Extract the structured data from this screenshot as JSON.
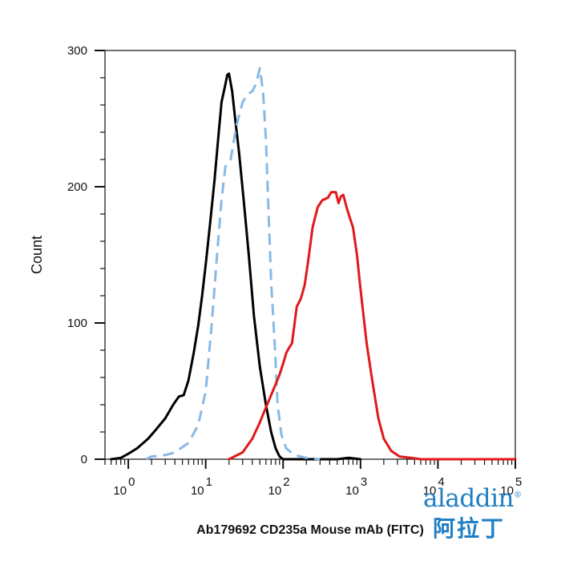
{
  "chart_data": {
    "type": "line",
    "xlabel": "Ab179692 CD235a Mouse mAb (FITC)",
    "ylabel": "Count",
    "x_scale": "log",
    "xlim": [
      0.5,
      100000
    ],
    "ylim": [
      0,
      300
    ],
    "yticks": [
      0,
      100,
      200,
      300
    ],
    "yticks_labels": [
      "0",
      "100",
      "200",
      "300"
    ],
    "xticks": [
      1,
      10,
      100,
      1000,
      10000,
      100000
    ],
    "xticks_base": "10",
    "xticks_exponents": [
      "0",
      "1",
      "2",
      "3",
      "4",
      "5"
    ],
    "grid": false,
    "legend": "none",
    "series": [
      {
        "color": "#000000",
        "style": "solid",
        "points": [
          [
            0.6,
            0
          ],
          [
            0.8,
            1
          ],
          [
            1.0,
            4
          ],
          [
            1.3,
            8
          ],
          [
            1.8,
            15
          ],
          [
            2.3,
            22
          ],
          [
            3.0,
            30
          ],
          [
            3.8,
            40
          ],
          [
            4.5,
            46
          ],
          [
            5.2,
            47
          ],
          [
            6.0,
            58
          ],
          [
            7.0,
            78
          ],
          [
            8.0,
            98
          ],
          [
            9.0,
            120
          ],
          [
            10.0,
            143
          ],
          [
            11.5,
            175
          ],
          [
            13.0,
            205
          ],
          [
            14.5,
            235
          ],
          [
            16.0,
            262
          ],
          [
            17.5,
            272
          ],
          [
            19.0,
            282
          ],
          [
            20.0,
            283
          ],
          [
            22.0,
            270
          ],
          [
            24.0,
            250
          ],
          [
            27.0,
            225
          ],
          [
            31.0,
            190
          ],
          [
            36.0,
            150
          ],
          [
            42.0,
            105
          ],
          [
            50.0,
            68
          ],
          [
            60.0,
            40
          ],
          [
            70.0,
            20
          ],
          [
            80.0,
            8
          ],
          [
            90.0,
            2
          ],
          [
            100.0,
            0
          ],
          [
            130.0,
            0
          ],
          [
            200.0,
            0
          ],
          [
            500.0,
            0
          ],
          [
            700.0,
            1
          ],
          [
            1000.0,
            0
          ]
        ]
      },
      {
        "color": "#88b9e6",
        "style": "dashed",
        "points": [
          [
            1.7,
            0
          ],
          [
            2.0,
            2
          ],
          [
            3.0,
            3
          ],
          [
            4.0,
            5
          ],
          [
            6.0,
            12
          ],
          [
            8.0,
            25
          ],
          [
            10.0,
            50
          ],
          [
            12.0,
            100
          ],
          [
            14.0,
            150
          ],
          [
            16.0,
            190
          ],
          [
            18.0,
            215
          ],
          [
            21.0,
            220
          ],
          [
            25.0,
            245
          ],
          [
            30.0,
            262
          ],
          [
            35.0,
            268
          ],
          [
            40.0,
            270
          ],
          [
            45.0,
            276
          ],
          [
            50.0,
            287
          ],
          [
            55.0,
            270
          ],
          [
            60.0,
            235
          ],
          [
            65.0,
            180
          ],
          [
            70.0,
            130
          ],
          [
            78.0,
            85
          ],
          [
            85.0,
            40
          ],
          [
            95.0,
            18
          ],
          [
            110.0,
            8
          ],
          [
            140.0,
            3
          ],
          [
            200.0,
            1
          ],
          [
            300.0,
            0
          ]
        ]
      },
      {
        "color": "#e0191c",
        "style": "solid",
        "points": [
          [
            20.0,
            0
          ],
          [
            30.0,
            5
          ],
          [
            40.0,
            15
          ],
          [
            50.0,
            27
          ],
          [
            60.0,
            38
          ],
          [
            70.0,
            47
          ],
          [
            80.0,
            55
          ],
          [
            90.0,
            62
          ],
          [
            100.0,
            70
          ],
          [
            110.0,
            78
          ],
          [
            120.0,
            82
          ],
          [
            130.0,
            85
          ],
          [
            150.0,
            112
          ],
          [
            170.0,
            118
          ],
          [
            190.0,
            128
          ],
          [
            210.0,
            145
          ],
          [
            240.0,
            170
          ],
          [
            280.0,
            185
          ],
          [
            320.0,
            190
          ],
          [
            380.0,
            192
          ],
          [
            420.0,
            196
          ],
          [
            480.0,
            196
          ],
          [
            520.0,
            188
          ],
          [
            560.0,
            193
          ],
          [
            600.0,
            194
          ],
          [
            660.0,
            185
          ],
          [
            720.0,
            178
          ],
          [
            800.0,
            170
          ],
          [
            900.0,
            150
          ],
          [
            1000.0,
            125
          ],
          [
            1200.0,
            85
          ],
          [
            1400.0,
            60
          ],
          [
            1700.0,
            30
          ],
          [
            2000.0,
            15
          ],
          [
            2500.0,
            6
          ],
          [
            3200.0,
            2
          ],
          [
            4500.0,
            1
          ],
          [
            6000.0,
            0
          ],
          [
            30000.0,
            0
          ],
          [
            100000.0,
            0
          ]
        ]
      }
    ]
  },
  "logo": {
    "latin": "aladdin",
    "reg_mark": "®",
    "cn": "阿拉丁"
  }
}
